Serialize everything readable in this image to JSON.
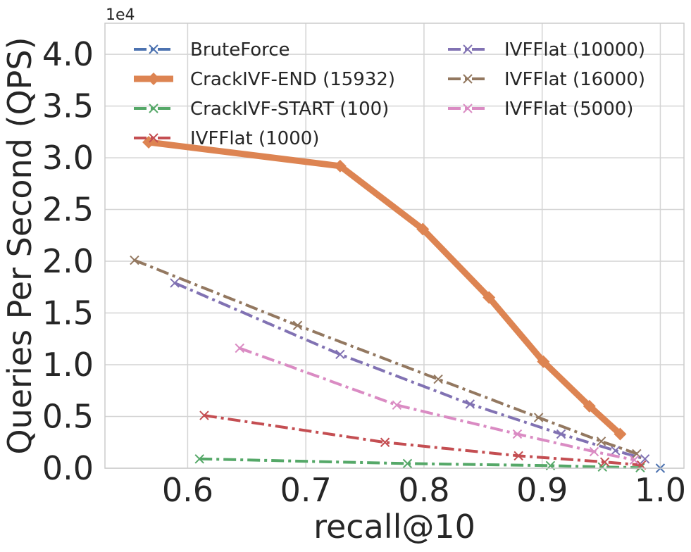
{
  "chart_data": {
    "type": "line",
    "title": "",
    "xlabel": "recall@10",
    "ylabel": "Queries Per Second (QPS)",
    "y_offset_label": "1e4",
    "xlim": [
      0.53,
      1.02
    ],
    "ylim": [
      0,
      4.3
    ],
    "y_unit_scale": 10000,
    "grid": true,
    "x_ticks": [
      0.6,
      0.7,
      0.8,
      0.9,
      1.0
    ],
    "x_tick_labels": [
      "0.6",
      "0.7",
      "0.8",
      "0.9",
      "1.0"
    ],
    "y_ticks": [
      0,
      0.5,
      1.0,
      1.5,
      2.0,
      2.5,
      3.0,
      3.5,
      4.0
    ],
    "y_tick_labels": [
      "0.0",
      "0.5",
      "1.0",
      "1.5",
      "2.0",
      "2.5",
      "3.0",
      "3.5",
      "4.0"
    ],
    "legend_placement": "top, two columns",
    "series": [
      {
        "name": "BruteForce",
        "color": "#4c72b0",
        "marker": "x",
        "style": "dashdot",
        "emphasis": false,
        "x": [
          1.0
        ],
        "y": [
          0.0
        ]
      },
      {
        "name": "CrackIVF-END (15932)",
        "color": "#dd8452",
        "marker": "diamond",
        "style": "solid",
        "emphasis": true,
        "x": [
          0.567,
          0.729,
          0.799,
          0.855,
          0.901,
          0.94,
          0.966
        ],
        "y": [
          3.15,
          2.92,
          2.31,
          1.65,
          1.03,
          0.6,
          0.33
        ]
      },
      {
        "name": "CrackIVF-START (100)",
        "color": "#55a868",
        "marker": "x",
        "style": "dashdot",
        "emphasis": false,
        "x": [
          0.61,
          0.786,
          0.907,
          0.951,
          0.983
        ],
        "y": [
          0.09,
          0.045,
          0.025,
          0.012,
          0.005
        ]
      },
      {
        "name": "IVFFlat (1000)",
        "color": "#c44e52",
        "marker": "x",
        "style": "dashdot",
        "emphasis": false,
        "x": [
          0.614,
          0.767,
          0.88,
          0.953,
          0.984
        ],
        "y": [
          0.51,
          0.25,
          0.12,
          0.06,
          0.03
        ]
      },
      {
        "name": "IVFFlat (10000)",
        "color": "#8172b3",
        "marker": "x",
        "style": "dashdot",
        "emphasis": false,
        "x": [
          0.589,
          0.729,
          0.839,
          0.916,
          0.962,
          0.987
        ],
        "y": [
          1.79,
          1.1,
          0.62,
          0.33,
          0.17,
          0.09
        ]
      },
      {
        "name": "IVFFlat (16000)",
        "color": "#937860",
        "marker": "x",
        "style": "dashdot",
        "emphasis": false,
        "x": [
          0.555,
          0.693,
          0.812,
          0.897,
          0.95,
          0.98
        ],
        "y": [
          2.01,
          1.38,
          0.86,
          0.49,
          0.26,
          0.14
        ]
      },
      {
        "name": "IVFFlat (5000)",
        "color": "#da8bc3",
        "marker": "x",
        "style": "dashdot",
        "emphasis": false,
        "x": [
          0.644,
          0.777,
          0.879,
          0.944,
          0.978
        ],
        "y": [
          1.16,
          0.61,
          0.33,
          0.16,
          0.08
        ]
      }
    ]
  }
}
